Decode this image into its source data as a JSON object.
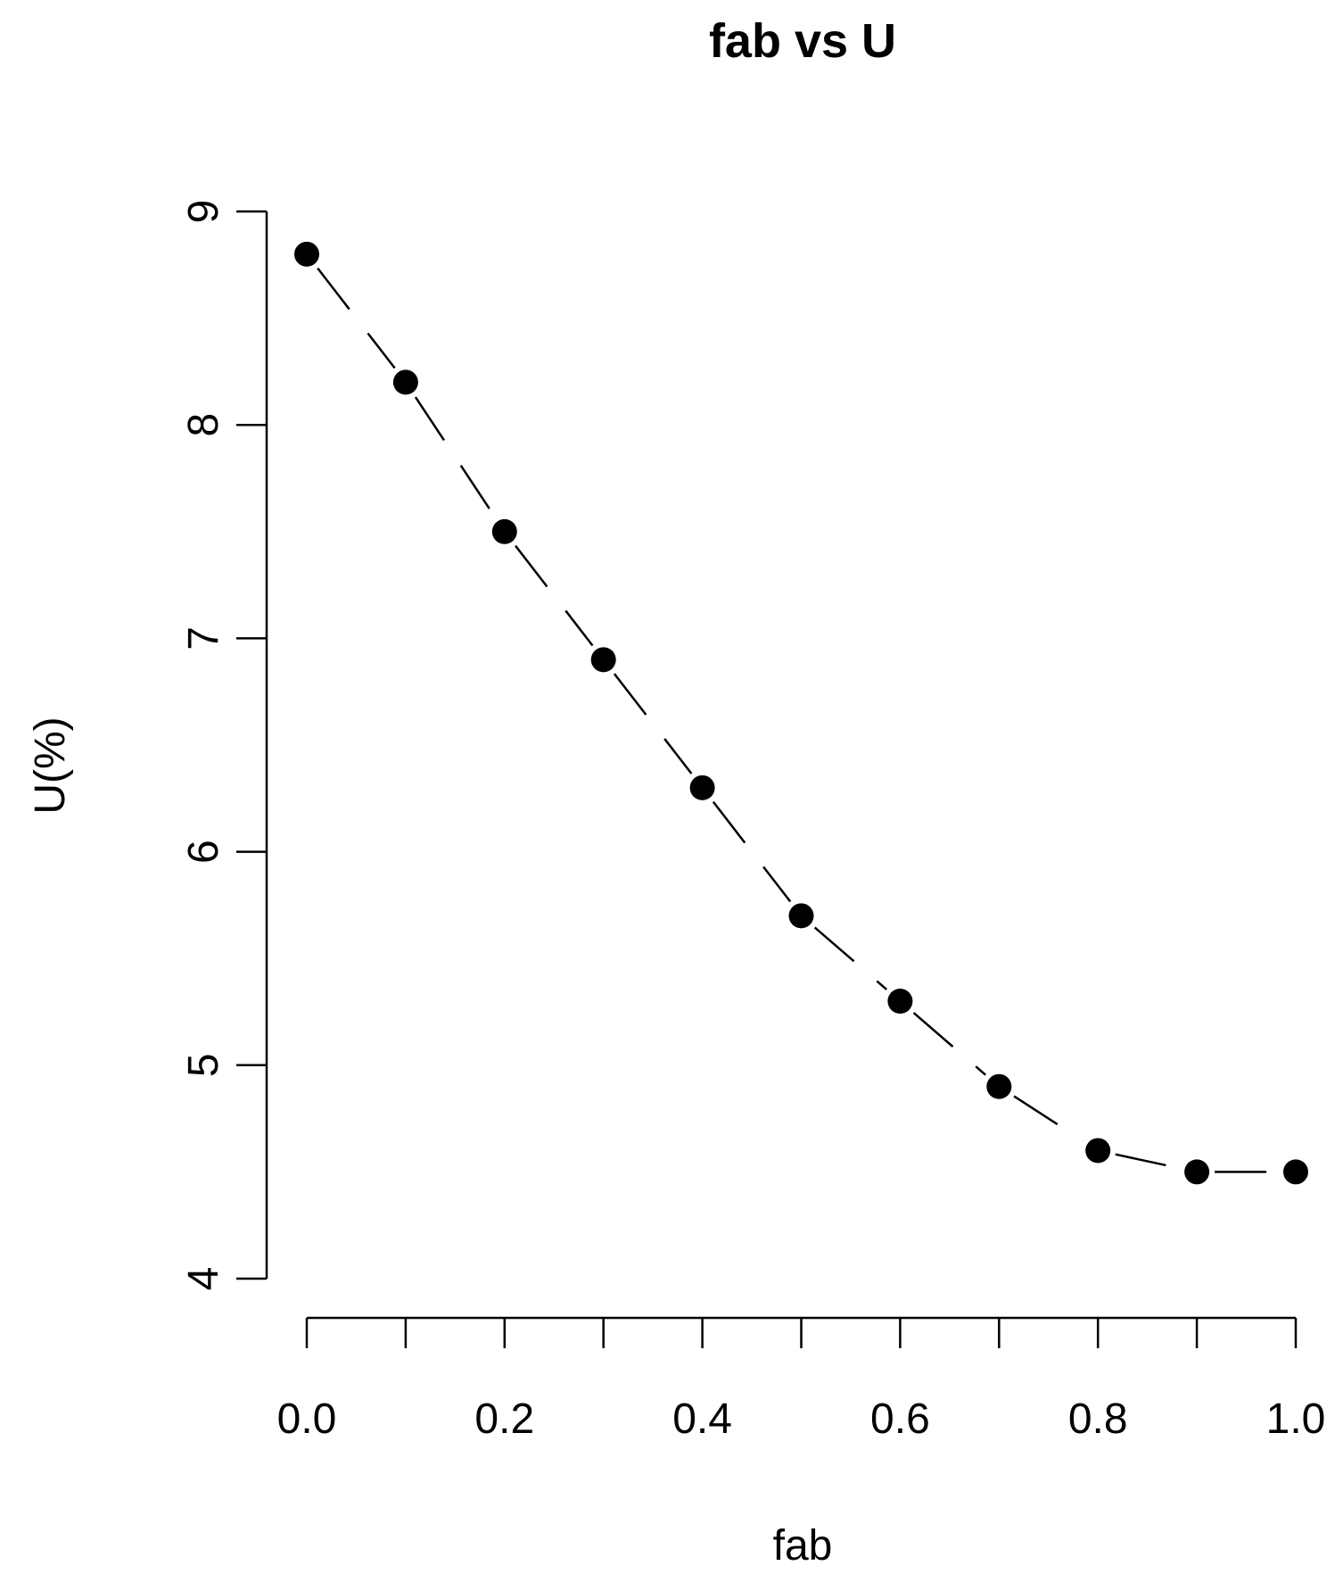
{
  "chart_data": {
    "type": "line",
    "title": "fab vs U",
    "xlabel": "fab",
    "ylabel": "U(%)",
    "xlim": [
      0.0,
      1.0
    ],
    "ylim": [
      4,
      9
    ],
    "x_ticks": [
      "0.0",
      "0.2",
      "0.4",
      "0.6",
      "0.8",
      "1.0"
    ],
    "x_tick_values": [
      0.0,
      0.2,
      0.4,
      0.6,
      0.8,
      1.0
    ],
    "y_ticks": [
      "4",
      "5",
      "6",
      "7",
      "8",
      "9"
    ],
    "y_tick_values": [
      4,
      5,
      6,
      7,
      8,
      9
    ],
    "x": [
      0.0,
      0.1,
      0.2,
      0.3,
      0.4,
      0.5,
      0.6,
      0.7,
      0.8,
      0.9,
      1.0
    ],
    "y": [
      8.8,
      8.2,
      7.5,
      6.9,
      6.3,
      5.7,
      5.3,
      4.9,
      4.6,
      4.5,
      4.5
    ],
    "line_style": "dashed",
    "marker": "filled-circle",
    "grid": false,
    "colors": {
      "line": "#000000",
      "marker": "#000000",
      "background": "#ffffff"
    }
  }
}
